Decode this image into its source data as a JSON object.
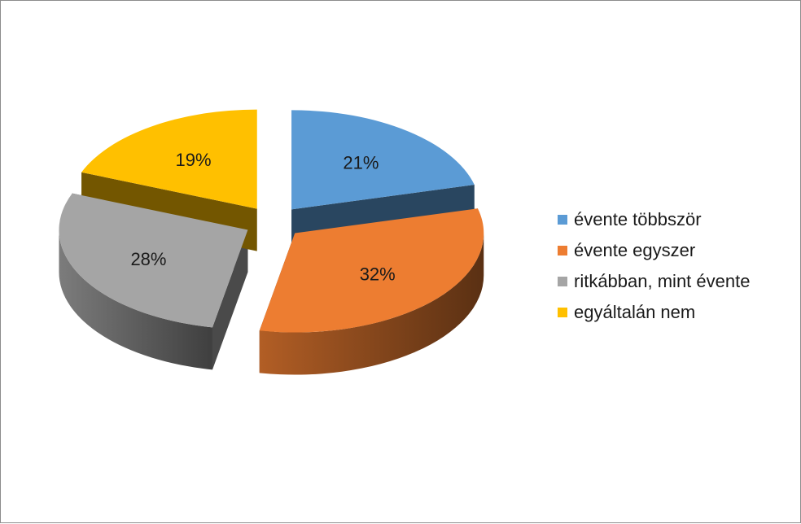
{
  "chart_data": {
    "type": "pie",
    "style": "3d-exploded",
    "categories": [
      "évente többször",
      "évente egyszer",
      "ritkábban, mint évente",
      "egyáltalán nem"
    ],
    "values": [
      21,
      32,
      28,
      19
    ],
    "labels": [
      "21%",
      "32%",
      "28%",
      "19%"
    ],
    "colors": [
      "#5B9BD5",
      "#ED7D31",
      "#A5A5A5",
      "#FFC000"
    ],
    "legend_position": "right"
  }
}
